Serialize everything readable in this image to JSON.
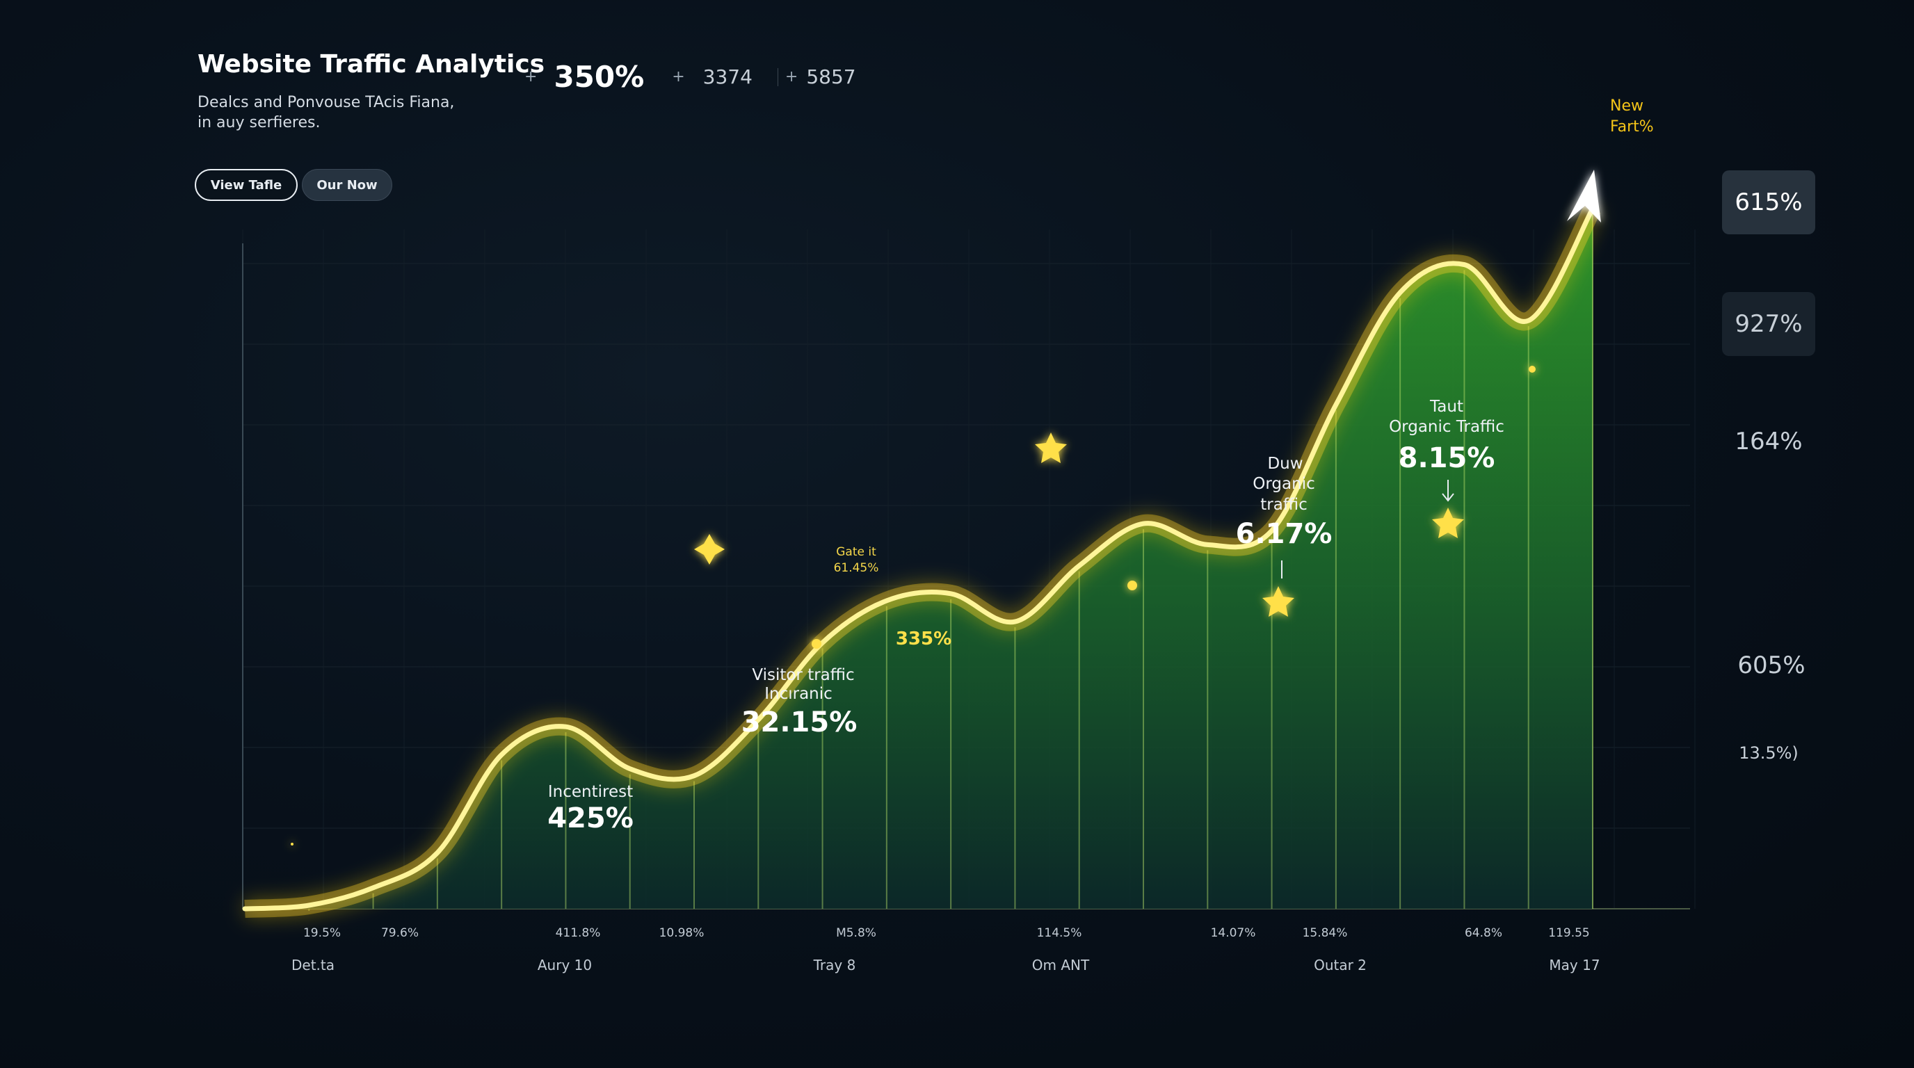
{
  "header": {
    "title": "Website Traffic Analytics",
    "subtitle": "Dealcs and Ponvouse TAcis Fiana,\nin auy serfieres."
  },
  "kpis": [
    {
      "prefix": "+",
      "value": "350%"
    },
    {
      "prefix": "+",
      "value": "3374"
    },
    {
      "prefix": "+",
      "value": "5857"
    }
  ],
  "buttons": {
    "view_label": "View Tafle",
    "our_now_label": "Our Now"
  },
  "side_panel": [
    "615%",
    "927%",
    "164%",
    "605%",
    "13.5%)"
  ],
  "corner_note": {
    "line1": "New",
    "line2": "Fart%"
  },
  "chart_data": {
    "type": "area",
    "x_value_labels": [
      "19.5%",
      "79.6%",
      "411.8%",
      "10.98%",
      "M5.8%",
      "114.5%",
      "14.07%",
      "15.84%",
      "64.8%",
      "119.55"
    ],
    "x_category_labels": [
      "Det.ta",
      "Aury 10",
      "Tray 8",
      "Om ANT",
      "Outar 2",
      "May 17"
    ],
    "series": [
      {
        "values": [
          0,
          0.5,
          3,
          8,
          22,
          26,
          20,
          19,
          27,
          38,
          44,
          45,
          41,
          49,
          55,
          52,
          54,
          72,
          88,
          92,
          84,
          100
        ]
      }
    ],
    "ylim": [
      0,
      100
    ],
    "line_color": "#ffe84a",
    "fill_top_color": "#2f9a2a",
    "fill_bottom_color": "#0c2a2a",
    "annotations": [
      {
        "label": "Incentirest",
        "value": "425%"
      },
      {
        "label1": "Visitor traffic",
        "label2": "Incıranic",
        "value": "32.15%"
      },
      {
        "label1": "Gate it",
        "label2": "61.45%"
      },
      {
        "value": "335%"
      },
      {
        "label1": "Duw",
        "label2": "Organic",
        "label3": "traffic",
        "value": "6.17%"
      },
      {
        "label1": "Taut",
        "label2": "Organic Traffic",
        "value": "8.15%"
      }
    ]
  }
}
